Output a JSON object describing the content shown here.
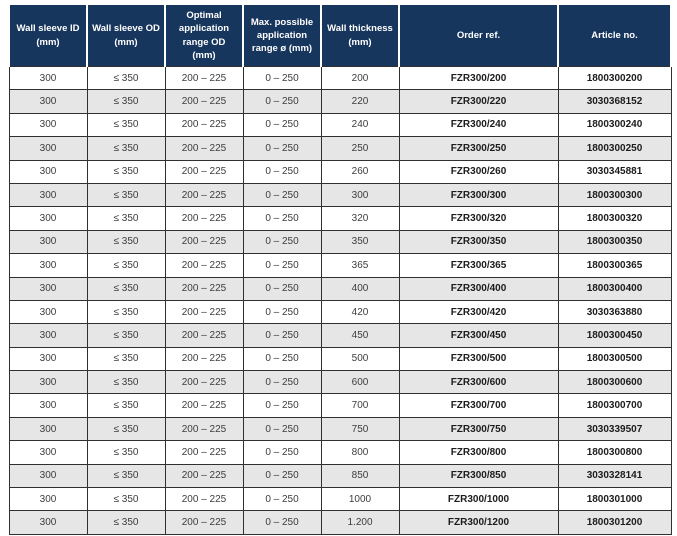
{
  "table": {
    "headers": [
      "Wall sleeve ID\n(mm)",
      "Wall sleeve OD\n(mm)",
      "Optimal\napplication\nrange OD\n(mm)",
      "Max. possible\napplication\nrange ø (mm)",
      "Wall thickness\n(mm)",
      "Order ref.",
      "Article no."
    ],
    "column_keys": [
      "wall-sleeve-id",
      "wall-sleeve-od",
      "optimal-application-range-od",
      "max-possible-application-range",
      "wall-thickness",
      "order-ref",
      "article-no"
    ],
    "rows": [
      [
        "300",
        "≤ 350",
        "200 – 225",
        "0 – 250",
        "200",
        "FZR300/200",
        "1800300200"
      ],
      [
        "300",
        "≤ 350",
        "200 – 225",
        "0 – 250",
        "220",
        "FZR300/220",
        "3030368152"
      ],
      [
        "300",
        "≤ 350",
        "200 – 225",
        "0 – 250",
        "240",
        "FZR300/240",
        "1800300240"
      ],
      [
        "300",
        "≤ 350",
        "200 – 225",
        "0 – 250",
        "250",
        "FZR300/250",
        "1800300250"
      ],
      [
        "300",
        "≤ 350",
        "200 – 225",
        "0 – 250",
        "260",
        "FZR300/260",
        "3030345881"
      ],
      [
        "300",
        "≤ 350",
        "200 – 225",
        "0 – 250",
        "300",
        "FZR300/300",
        "1800300300"
      ],
      [
        "300",
        "≤ 350",
        "200 – 225",
        "0 – 250",
        "320",
        "FZR300/320",
        "1800300320"
      ],
      [
        "300",
        "≤ 350",
        "200 – 225",
        "0 – 250",
        "350",
        "FZR300/350",
        "1800300350"
      ],
      [
        "300",
        "≤ 350",
        "200 – 225",
        "0 – 250",
        "365",
        "FZR300/365",
        "1800300365"
      ],
      [
        "300",
        "≤ 350",
        "200 – 225",
        "0 – 250",
        "400",
        "FZR300/400",
        "1800300400"
      ],
      [
        "300",
        "≤ 350",
        "200 – 225",
        "0 – 250",
        "420",
        "FZR300/420",
        "3030363880"
      ],
      [
        "300",
        "≤ 350",
        "200 – 225",
        "0 – 250",
        "450",
        "FZR300/450",
        "1800300450"
      ],
      [
        "300",
        "≤ 350",
        "200 – 225",
        "0 – 250",
        "500",
        "FZR300/500",
        "1800300500"
      ],
      [
        "300",
        "≤ 350",
        "200 – 225",
        "0 – 250",
        "600",
        "FZR300/600",
        "1800300600"
      ],
      [
        "300",
        "≤ 350",
        "200 – 225",
        "0 – 250",
        "700",
        "FZR300/700",
        "1800300700"
      ],
      [
        "300",
        "≤ 350",
        "200 – 225",
        "0 – 250",
        "750",
        "FZR300/750",
        "3030339507"
      ],
      [
        "300",
        "≤ 350",
        "200 – 225",
        "0 – 250",
        "800",
        "FZR300/800",
        "1800300800"
      ],
      [
        "300",
        "≤ 350",
        "200 – 225",
        "0 – 250",
        "850",
        "FZR300/850",
        "3030328141"
      ],
      [
        "300",
        "≤ 350",
        "200 – 225",
        "0 – 250",
        "1000",
        "FZR300/1000",
        "1800301000"
      ],
      [
        "300",
        "≤ 350",
        "200 – 225",
        "0 – 250",
        "1.200",
        "FZR300/1200",
        "1800301200"
      ]
    ]
  },
  "colors": {
    "header_bg": "#17365d",
    "header_text": "#ffffff",
    "alt_row_bg": "#e6e6e6",
    "border": "#303030",
    "body_text": "#3d3d3d",
    "emphasis_text": "#1c1c1c"
  }
}
